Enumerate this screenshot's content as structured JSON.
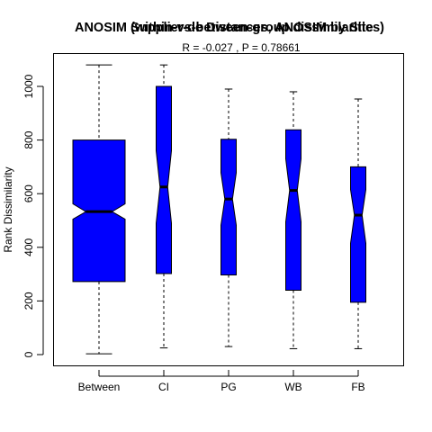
{
  "chart_data": {
    "type": "box",
    "title_overlapped": "ANOSIM (within-vs-between-group dissimilarities)",
    "title": "Supplier-de Distances, ANOSIM by Site",
    "subtitle": "R =  -0.027 ,  P =  0.78661",
    "xlabel": "",
    "ylabel": "Rank Dissimilarity",
    "ylim": [
      -40,
      1115
    ],
    "yticks": [
      0,
      200,
      400,
      600,
      800,
      1000
    ],
    "notched": true,
    "box_color": "#0000ff",
    "categories": [
      "Between",
      "CI",
      "PG",
      "WB",
      "FB"
    ],
    "boxes": [
      {
        "name": "Between",
        "whisker_low": 3,
        "q1": 272,
        "median": 533,
        "q3": 800,
        "whisker_high": 1080,
        "notch_low": 505,
        "notch_high": 562
      },
      {
        "name": "CI",
        "whisker_low": 25,
        "q1": 302,
        "median": 625,
        "q3": 1000,
        "whisker_high": 1080,
        "notch_low": 490,
        "notch_high": 760
      },
      {
        "name": "PG",
        "whisker_low": 30,
        "q1": 297,
        "median": 580,
        "q3": 803,
        "whisker_high": 990,
        "notch_low": 483,
        "notch_high": 678
      },
      {
        "name": "WB",
        "whisker_low": 22,
        "q1": 240,
        "median": 612,
        "q3": 838,
        "whisker_high": 980,
        "notch_low": 495,
        "notch_high": 730
      },
      {
        "name": "FB",
        "whisker_low": 22,
        "q1": 195,
        "median": 520,
        "q3": 700,
        "whisker_high": 953,
        "notch_low": 415,
        "notch_high": 615
      }
    ]
  }
}
